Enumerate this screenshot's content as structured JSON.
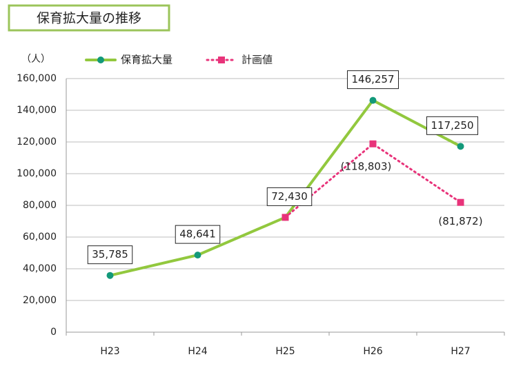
{
  "chart_data": {
    "type": "line",
    "title": "保育拡大量の推移",
    "y_unit": "（人）",
    "categories": [
      "H23",
      "H24",
      "H25",
      "H26",
      "H27"
    ],
    "series": [
      {
        "name": "保育拡大量",
        "color": "#92c83e",
        "marker_color": "#13997a",
        "marker": "circle",
        "dash": "solid",
        "values": [
          35785,
          48641,
          72430,
          146257,
          117250
        ],
        "value_labels": [
          "35,785",
          "48,641",
          "72,430",
          "146,257",
          "117,250"
        ]
      },
      {
        "name": "計画値",
        "color": "#e8337a",
        "marker_color": "#e8337a",
        "marker": "square",
        "dash": "dotted",
        "values": [
          null,
          null,
          72430,
          118803,
          81872
        ],
        "value_labels": [
          null,
          null,
          null,
          "(118,803)",
          "(81,872)"
        ]
      }
    ],
    "ylim": [
      0,
      160000
    ],
    "yticks": [
      0,
      {
        "value": 20000,
        "label": "20,000"
      },
      {
        "value": 40000,
        "label": "40,000"
      },
      {
        "value": 60000,
        "label": "60,000"
      },
      {
        "value": 80000,
        "label": "80,000"
      },
      {
        "value": 100000,
        "label": "100,000"
      },
      {
        "value": 120000,
        "label": "120,000"
      },
      {
        "value": 140000,
        "label": "140,000"
      },
      {
        "value": 160000,
        "label": "160,000"
      }
    ],
    "grid": true,
    "legend": "top"
  }
}
